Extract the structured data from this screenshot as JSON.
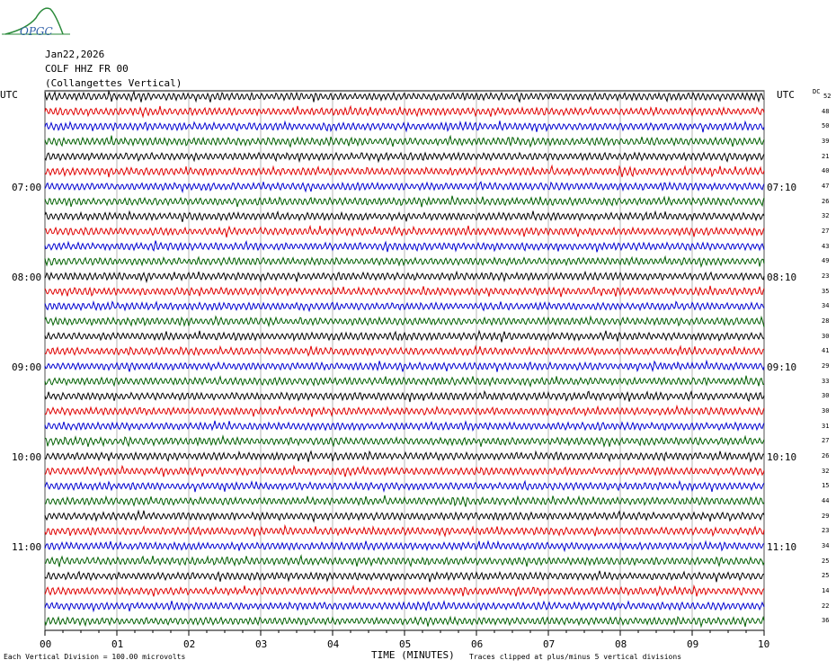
{
  "header": {
    "date": "Jan22,2026",
    "station": "COLF HHZ FR 00",
    "site": "(Collangettes Vertical)"
  },
  "logo": {
    "text": "OPGC"
  },
  "axes": {
    "left_unit": "UTC",
    "right_unit": "UTC",
    "dc_label": "DC",
    "left_times": [
      "07:00",
      "08:00",
      "09:00",
      "10:00",
      "11:00"
    ],
    "right_times": [
      "07:10",
      "08:10",
      "09:10",
      "10:10",
      "11:10"
    ],
    "x_ticks": [
      "00",
      "01",
      "02",
      "03",
      "04",
      "05",
      "06",
      "07",
      "08",
      "09",
      "10"
    ],
    "x_title": "TIME (MINUTES)"
  },
  "dc_values": [
    "52",
    "48",
    "50",
    "39",
    "21",
    "40",
    "47",
    "26",
    "32",
    "27",
    "43",
    "49",
    "23",
    "35",
    "34",
    "28",
    "30",
    "41",
    "29",
    "33",
    "30",
    "30",
    "31",
    "27",
    "26",
    "32",
    "15",
    "44",
    "29",
    "23",
    "34",
    "25",
    "25",
    "14",
    "22",
    "36"
  ],
  "trace_colors": [
    "#000000",
    "#e00000",
    "#0000d0",
    "#006000"
  ],
  "footer": {
    "scale_note": "Each Vertical Division =  100.00 microvolts",
    "clip_note": "Traces clipped at plus/minus 5 vertical divisions"
  }
}
